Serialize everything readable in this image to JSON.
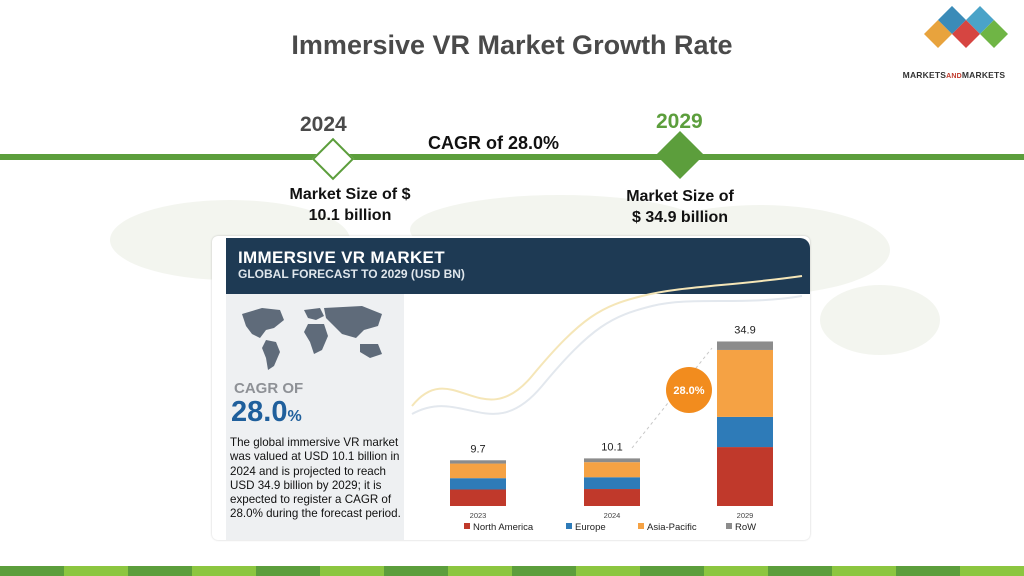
{
  "slide": {
    "title": "Immersive VR Market Growth Rate",
    "year_start": "2024",
    "year_end": "2029",
    "cagr": "CAGR of 28.0%",
    "size_start_line1": "Market Size of $",
    "size_start_line2": "10.1 billion",
    "size_end_line1": "Market Size of",
    "size_end_line2": "$ 34.9 billion"
  },
  "logo": {
    "name_part1": "MARKETS",
    "name_part2": "AND",
    "name_part3": "MARKETS",
    "colors": [
      "#4aa3c8",
      "#1f5f9c",
      "#d64541",
      "#6fb545",
      "#e8a33d"
    ]
  },
  "infographic": {
    "title": "IMMERSIVE VR MARKET",
    "subtitle": "GLOBAL FORECAST TO 2029 (USD BN)",
    "cagr_caption": "CAGR OF",
    "cagr_value": "28.0",
    "cagr_unit": "%",
    "description": "The global immersive VR market was valued at USD 10.1 billion in 2024 and is projected to reach USD 34.9 billion by 2029; it is expected to register a CAGR of 28.0% during the forecast period."
  },
  "chart_data": {
    "type": "bar",
    "stacked": true,
    "categories": [
      "2023",
      "2024",
      "2029"
    ],
    "totals": [
      "9.7",
      "10.1",
      "34.9"
    ],
    "total_values": [
      9.7,
      10.1,
      34.9
    ],
    "cagr_badge": "28.0%",
    "series": [
      {
        "name": "North America",
        "color": "#c0392b",
        "values": [
          3.5,
          3.6,
          12.5
        ]
      },
      {
        "name": "Europe",
        "color": "#2e7bb8",
        "values": [
          2.4,
          2.5,
          6.4
        ]
      },
      {
        "name": "Asia-Pacific",
        "color": "#f5a244",
        "values": [
          3.1,
          3.2,
          14.2
        ]
      },
      {
        "name": "RoW",
        "color": "#8c8c8c",
        "values": [
          0.7,
          0.8,
          1.8
        ]
      }
    ],
    "legend_position": "bottom",
    "grid": false
  },
  "colors": {
    "accent_green": "#5c9e3c",
    "header_navy": "#1e3a54",
    "cagr_blue": "#1f5f9c",
    "badge_orange": "#f28c1e"
  },
  "footer_colors": [
    "#5c9e3c",
    "#8cc640"
  ]
}
